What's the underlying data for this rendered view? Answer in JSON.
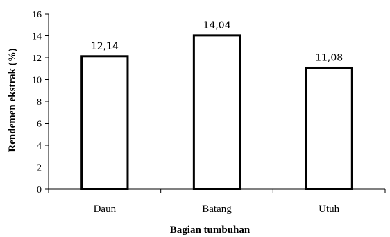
{
  "chart_data": {
    "type": "bar",
    "categories": [
      "Daun",
      "Batang",
      "Utuh"
    ],
    "values": [
      12.14,
      14.04,
      11.08
    ],
    "data_labels": [
      "12,14",
      "14,04",
      "11,08"
    ],
    "xlabel": "Bagian tumbuhan",
    "ylabel": "Rendemen ekstrak (%)",
    "ylim": [
      0,
      16
    ],
    "yticks": [
      0,
      2,
      4,
      6,
      8,
      10,
      12,
      14,
      16
    ],
    "grid": false,
    "legend": "none",
    "colors": {
      "bar_fill": "#ffffff",
      "bar_stroke": "#000000",
      "axis": "#000000"
    }
  }
}
